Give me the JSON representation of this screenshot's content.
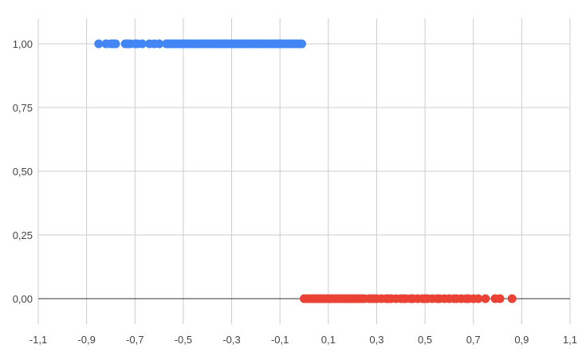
{
  "chart_data": {
    "type": "scatter",
    "title": "",
    "xlabel": "",
    "ylabel": "",
    "xlim": [
      -1.1,
      1.1
    ],
    "ylim": [
      -0.1,
      1.1
    ],
    "grid": true,
    "legend": "none",
    "x_ticks": [
      {
        "value": -1.1,
        "label": "-1,1"
      },
      {
        "value": -0.9,
        "label": "-0,9"
      },
      {
        "value": -0.7,
        "label": "-0,7"
      },
      {
        "value": -0.5,
        "label": "-0,5"
      },
      {
        "value": -0.3,
        "label": "-0,3"
      },
      {
        "value": -0.1,
        "label": "-0,1"
      },
      {
        "value": 0.1,
        "label": "0,1"
      },
      {
        "value": 0.3,
        "label": "0,3"
      },
      {
        "value": 0.5,
        "label": "0,5"
      },
      {
        "value": 0.7,
        "label": "0,7"
      },
      {
        "value": 0.9,
        "label": "0,9"
      },
      {
        "value": 1.1,
        "label": "1,1"
      }
    ],
    "y_ticks": [
      {
        "value": 0.0,
        "label": "0,00"
      },
      {
        "value": 0.25,
        "label": "0,25"
      },
      {
        "value": 0.5,
        "label": "0,50"
      },
      {
        "value": 0.75,
        "label": "0,75"
      },
      {
        "value": 1.0,
        "label": "1,00"
      }
    ],
    "series": [
      {
        "color": "#4285f4",
        "y": 1.0,
        "x": [
          -0.85,
          -0.82,
          -0.8,
          -0.79,
          -0.78,
          -0.74,
          -0.73,
          -0.72,
          -0.7,
          -0.69,
          -0.67,
          -0.64,
          -0.62,
          -0.6,
          -0.57,
          -0.56,
          -0.55,
          -0.54,
          -0.53,
          -0.52,
          -0.51,
          -0.5,
          -0.49,
          -0.48,
          -0.47,
          -0.46,
          -0.45,
          -0.44,
          -0.43,
          -0.42,
          -0.41,
          -0.4,
          -0.39,
          -0.38,
          -0.37,
          -0.36,
          -0.35,
          -0.34,
          -0.33,
          -0.32,
          -0.31,
          -0.3,
          -0.29,
          -0.28,
          -0.27,
          -0.26,
          -0.25,
          -0.24,
          -0.23,
          -0.22,
          -0.21,
          -0.2,
          -0.19,
          -0.18,
          -0.17,
          -0.16,
          -0.15,
          -0.14,
          -0.13,
          -0.12,
          -0.11,
          -0.1,
          -0.09,
          -0.08,
          -0.07,
          -0.06,
          -0.05,
          -0.04,
          -0.03,
          -0.02,
          -0.01
        ]
      },
      {
        "color": "#ea4335",
        "y": 0.0,
        "x": [
          0.0,
          0.01,
          0.02,
          0.03,
          0.04,
          0.05,
          0.06,
          0.07,
          0.08,
          0.09,
          0.1,
          0.11,
          0.12,
          0.13,
          0.14,
          0.15,
          0.16,
          0.17,
          0.18,
          0.19,
          0.2,
          0.21,
          0.22,
          0.23,
          0.24,
          0.25,
          0.27,
          0.28,
          0.29,
          0.3,
          0.32,
          0.34,
          0.35,
          0.36,
          0.38,
          0.4,
          0.41,
          0.42,
          0.44,
          0.45,
          0.47,
          0.49,
          0.5,
          0.51,
          0.53,
          0.55,
          0.56,
          0.58,
          0.6,
          0.62,
          0.63,
          0.65,
          0.67,
          0.68,
          0.7,
          0.72,
          0.75,
          0.79,
          0.81,
          0.86
        ]
      }
    ]
  }
}
